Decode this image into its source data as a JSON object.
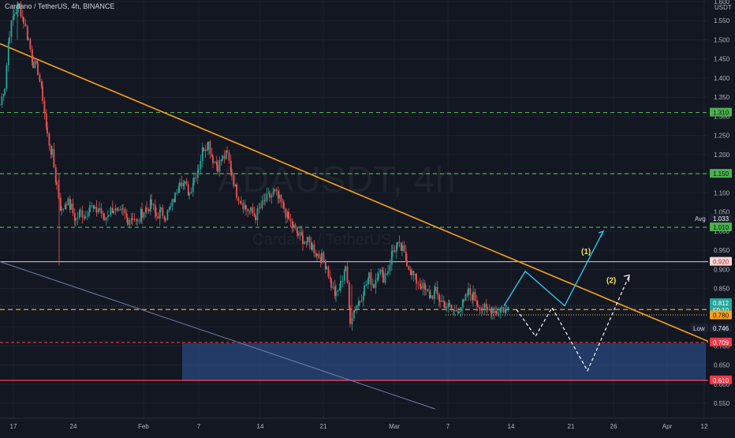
{
  "header": {
    "title": "Cardano / TetherUS, 4h, BINANCE"
  },
  "watermark": {
    "symbol": "ADAUSDT, 4h",
    "name": "Cardano / TetherUS"
  },
  "colors": {
    "background": "#131722",
    "grid": "#1e2230",
    "up": "#26a69a",
    "down": "#ef5350",
    "trendline": "#f7a21b",
    "support_zone": "#2a4a7f",
    "green_level": "#4caf50",
    "red_level": "#f23645",
    "projection_1": "#2ec4e6",
    "projection_2": "#ffffff"
  },
  "price_axis": {
    "ticks": [
      "1.600",
      "1.550",
      "1.500",
      "1.450",
      "1.400",
      "1.350",
      "1.300",
      "1.250",
      "1.200",
      "1.150",
      "1.100",
      "1.050",
      "1.000",
      "0.950",
      "0.900",
      "0.850",
      "0.800",
      "0.750",
      "0.700",
      "0.650",
      "0.600",
      "0.550"
    ],
    "currency": "USDT"
  },
  "time_axis": {
    "ticks": [
      "17",
      "24",
      "Feb",
      "7",
      "14",
      "21",
      "Mar",
      "7",
      "14",
      "21",
      "26",
      "Apr",
      "12"
    ]
  },
  "levels": [
    {
      "value": 1.31,
      "label": "1.310",
      "style": "green-dashed"
    },
    {
      "value": 1.15,
      "label": "1.150",
      "style": "green-dashed"
    },
    {
      "value": 1.01,
      "label": "1.010",
      "style": "green-dashed"
    },
    {
      "value": 0.92,
      "label": "0.920",
      "style": "white-solid"
    },
    {
      "value": 0.795,
      "label": "0.795",
      "style": "orange-dashed"
    },
    {
      "value": 0.709,
      "label": "0.709",
      "style": "red-dashed"
    },
    {
      "value": 0.61,
      "label": "0.610",
      "style": "red-solid"
    }
  ],
  "price_badges": {
    "avg": {
      "tag": "Avg",
      "value": "1.033"
    },
    "current": {
      "value": "0.812",
      "countdown": "59:10"
    },
    "extra": {
      "value": "0.780"
    },
    "low": {
      "tag": "Low",
      "value": "0.746"
    }
  },
  "annotations": {
    "path1": "(1)",
    "path2": "(2)"
  },
  "chart_data": {
    "type": "candlestick",
    "symbol": "ADAUSDT",
    "interval": "4h",
    "exchange": "BINANCE",
    "ylim": [
      0.53,
      1.6
    ],
    "close_path": [
      [
        0,
        1.33
      ],
      [
        6,
        1.38
      ],
      [
        12,
        1.52
      ],
      [
        18,
        1.57
      ],
      [
        24,
        1.59
      ],
      [
        30,
        1.55
      ],
      [
        36,
        1.5
      ],
      [
        42,
        1.44
      ],
      [
        48,
        1.42
      ],
      [
        54,
        1.35
      ],
      [
        60,
        1.25
      ],
      [
        66,
        1.2
      ],
      [
        72,
        1.12
      ],
      [
        78,
        1.05
      ],
      [
        84,
        1.08
      ],
      [
        90,
        1.06
      ],
      [
        96,
        1.03
      ],
      [
        102,
        1.05
      ],
      [
        108,
        1.04
      ],
      [
        114,
        1.07
      ],
      [
        120,
        1.05
      ],
      [
        126,
        1.06
      ],
      [
        132,
        1.03
      ],
      [
        138,
        1.05
      ],
      [
        144,
        1.06
      ],
      [
        150,
        1.04
      ],
      [
        156,
        1.05
      ],
      [
        162,
        1.03
      ],
      [
        168,
        1.04
      ],
      [
        174,
        1.02
      ],
      [
        180,
        1.05
      ],
      [
        186,
        1.06
      ],
      [
        192,
        1.07
      ],
      [
        198,
        1.04
      ],
      [
        204,
        1.05
      ],
      [
        210,
        1.04
      ],
      [
        216,
        1.06
      ],
      [
        222,
        1.09
      ],
      [
        228,
        1.14
      ],
      [
        234,
        1.12
      ],
      [
        240,
        1.1
      ],
      [
        246,
        1.14
      ],
      [
        252,
        1.17
      ],
      [
        258,
        1.22
      ],
      [
        264,
        1.23
      ],
      [
        270,
        1.19
      ],
      [
        276,
        1.17
      ],
      [
        282,
        1.19
      ],
      [
        288,
        1.2
      ],
      [
        294,
        1.15
      ],
      [
        300,
        1.1
      ],
      [
        306,
        1.08
      ],
      [
        312,
        1.06
      ],
      [
        318,
        1.05
      ],
      [
        324,
        1.04
      ],
      [
        330,
        1.06
      ],
      [
        336,
        1.08
      ],
      [
        342,
        1.09
      ],
      [
        348,
        1.1
      ],
      [
        354,
        1.08
      ],
      [
        360,
        1.06
      ],
      [
        366,
        1.03
      ],
      [
        372,
        1.01
      ],
      [
        378,
        0.99
      ],
      [
        384,
        0.98
      ],
      [
        390,
        0.97
      ],
      [
        396,
        0.96
      ],
      [
        402,
        0.94
      ],
      [
        408,
        0.93
      ],
      [
        414,
        0.91
      ],
      [
        420,
        0.86
      ],
      [
        426,
        0.83
      ],
      [
        432,
        0.86
      ],
      [
        438,
        0.91
      ],
      [
        444,
        0.77
      ],
      [
        450,
        0.8
      ],
      [
        456,
        0.82
      ],
      [
        462,
        0.85
      ],
      [
        468,
        0.88
      ],
      [
        474,
        0.86
      ],
      [
        480,
        0.9
      ],
      [
        486,
        0.88
      ],
      [
        492,
        0.9
      ],
      [
        498,
        0.95
      ],
      [
        504,
        0.96
      ],
      [
        510,
        0.95
      ],
      [
        516,
        0.92
      ],
      [
        522,
        0.89
      ],
      [
        528,
        0.87
      ],
      [
        534,
        0.86
      ],
      [
        540,
        0.84
      ],
      [
        546,
        0.83
      ],
      [
        552,
        0.84
      ],
      [
        558,
        0.82
      ],
      [
        564,
        0.81
      ],
      [
        570,
        0.8
      ],
      [
        576,
        0.79
      ],
      [
        582,
        0.8
      ],
      [
        588,
        0.81
      ],
      [
        594,
        0.84
      ],
      [
        600,
        0.83
      ],
      [
        606,
        0.81
      ],
      [
        612,
        0.8
      ],
      [
        618,
        0.79
      ],
      [
        624,
        0.8
      ],
      [
        630,
        0.79
      ],
      [
        636,
        0.8
      ],
      [
        642,
        0.79
      ],
      [
        646,
        0.81
      ]
    ]
  }
}
